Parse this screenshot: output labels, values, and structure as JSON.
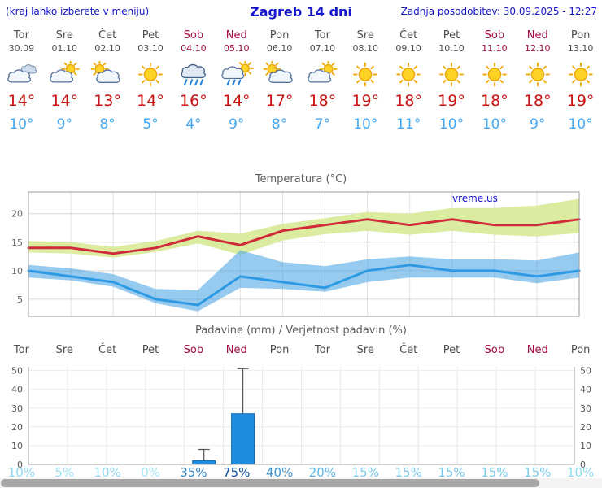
{
  "header": {
    "hint": "(kraj lahko izberete v meniju)",
    "title": "Zagreb 14 dni",
    "updated": "Zadnja posodobitev: 30.09.2025 - 12:27"
  },
  "days": [
    {
      "name": "Tor",
      "date": "30.09",
      "weekend": false,
      "icon": "cloudy",
      "tmax": "14°",
      "tmin": "10°",
      "precip_prob": "10%",
      "prob_color": "#8ed9f0"
    },
    {
      "name": "Sre",
      "date": "01.10",
      "weekend": false,
      "icon": "sun-cloud",
      "tmax": "14°",
      "tmin": "9°",
      "precip_prob": "5%",
      "prob_color": "#9ce0f4"
    },
    {
      "name": "Čet",
      "date": "02.10",
      "weekend": false,
      "icon": "cloud-sun",
      "tmax": "13°",
      "tmin": "8°",
      "precip_prob": "10%",
      "prob_color": "#8ed9f0"
    },
    {
      "name": "Pet",
      "date": "03.10",
      "weekend": false,
      "icon": "sun",
      "tmax": "14°",
      "tmin": "5°",
      "precip_prob": "0%",
      "prob_color": "#a6e4f6"
    },
    {
      "name": "Sob",
      "date": "04.10",
      "weekend": true,
      "icon": "rain",
      "tmax": "16°",
      "tmin": "4°",
      "precip_prob": "35%",
      "prob_color": "#2f86c7"
    },
    {
      "name": "Ned",
      "date": "05.10",
      "weekend": true,
      "icon": "sun-rain",
      "tmax": "14°",
      "tmin": "9°",
      "precip_prob": "75%",
      "prob_color": "#0c4da2"
    },
    {
      "name": "Pon",
      "date": "06.10",
      "weekend": false,
      "icon": "cloud-sun",
      "tmax": "17°",
      "tmin": "8°",
      "precip_prob": "40%",
      "prob_color": "#3d95d1"
    },
    {
      "name": "Tor",
      "date": "07.10",
      "weekend": false,
      "icon": "sun-cloud",
      "tmax": "18°",
      "tmin": "7°",
      "precip_prob": "20%",
      "prob_color": "#5fb6e2"
    },
    {
      "name": "Sre",
      "date": "08.10",
      "weekend": false,
      "icon": "sun",
      "tmax": "19°",
      "tmin": "10°",
      "precip_prob": "15%",
      "prob_color": "#77c9ea"
    },
    {
      "name": "Čet",
      "date": "09.10",
      "weekend": false,
      "icon": "sun",
      "tmax": "18°",
      "tmin": "11°",
      "precip_prob": "15%",
      "prob_color": "#77c9ea"
    },
    {
      "name": "Pet",
      "date": "10.10",
      "weekend": false,
      "icon": "sun",
      "tmax": "19°",
      "tmin": "10°",
      "precip_prob": "15%",
      "prob_color": "#77c9ea"
    },
    {
      "name": "Sob",
      "date": "11.10",
      "weekend": true,
      "icon": "sun",
      "tmax": "18°",
      "tmin": "10°",
      "precip_prob": "15%",
      "prob_color": "#77c9ea"
    },
    {
      "name": "Ned",
      "date": "12.10",
      "weekend": true,
      "icon": "sun",
      "tmax": "18°",
      "tmin": "9°",
      "precip_prob": "15%",
      "prob_color": "#77c9ea"
    },
    {
      "name": "Pon",
      "date": "13.10",
      "weekend": false,
      "icon": "sun",
      "tmax": "19°",
      "tmin": "10°",
      "precip_prob": "10%",
      "prob_color": "#8ed9f0"
    }
  ],
  "chart_data": [
    {
      "type": "line",
      "title": "Temperatura (°C)",
      "watermark": "vreme.us",
      "x_labels": [
        "Tor 30.09",
        "Sre 01.10",
        "Čet 02.10",
        "Pet 03.10",
        "Sob 04.10",
        "Ned 05.10",
        "Pon 06.10",
        "Tor 07.10",
        "Sre 08.10",
        "Čet 09.10",
        "Pet 10.10",
        "Sob 11.10",
        "Ned 12.10",
        "Pon 13.10"
      ],
      "ylim": [
        2,
        23.8
      ],
      "yticks": [
        5,
        10,
        15,
        20
      ],
      "series": [
        {
          "name": "max_temp",
          "color": "#cf2b3a",
          "width": 3,
          "values": [
            14,
            14,
            13,
            14,
            16,
            14.5,
            17,
            18,
            19,
            18,
            19,
            18,
            18,
            19
          ]
        },
        {
          "name": "min_temp",
          "color": "#2d9ae3",
          "width": 3,
          "values": [
            10,
            9,
            8,
            5,
            4,
            9,
            8,
            7,
            10,
            11,
            10,
            10,
            9,
            10
          ]
        }
      ],
      "bands": [
        {
          "name": "max_temp_range",
          "color": "#d9eb9b",
          "opacity": 0.95,
          "upper": [
            15.2,
            15,
            14.2,
            15.2,
            17,
            16.5,
            18.2,
            19.2,
            20.3,
            20,
            21,
            21,
            21.4,
            22.6
          ],
          "lower": [
            13.2,
            13,
            12.3,
            13.3,
            14.8,
            12.8,
            15.3,
            16.4,
            17,
            16.3,
            17,
            16.3,
            16,
            16.6
          ]
        },
        {
          "name": "min_temp_range",
          "color": "#3f9fe0",
          "opacity": 0.55,
          "upper": [
            11,
            10.4,
            9.4,
            6.8,
            6.6,
            13.6,
            11.5,
            10.8,
            12,
            12.5,
            12,
            12,
            11.8,
            13.2
          ],
          "lower": [
            8.8,
            8.3,
            7.2,
            4.3,
            2.9,
            7,
            6.8,
            6.3,
            8,
            8.8,
            8.8,
            8.8,
            7.8,
            8.8
          ]
        }
      ]
    },
    {
      "type": "bar",
      "title": "Padavine (mm) / Verjetnost padavin (%)",
      "ylim": [
        0,
        52
      ],
      "yticks": [
        0,
        10,
        20,
        30,
        40,
        50
      ],
      "categories": [
        "Tor",
        "Sre",
        "Čet",
        "Pet",
        "Sob",
        "Ned",
        "Pon",
        "Tor",
        "Sre",
        "Čet",
        "Pet",
        "Sob",
        "Ned",
        "Pon"
      ],
      "values": [
        0,
        0,
        0,
        0,
        2,
        27,
        0,
        0,
        0,
        0,
        0,
        0,
        0,
        0
      ],
      "whisker_low": [
        0,
        0,
        0,
        0,
        0,
        13,
        0,
        0,
        0,
        0,
        0,
        0,
        0,
        0
      ],
      "whisker_high": [
        0,
        0,
        0,
        0,
        8,
        51,
        0,
        0,
        0,
        0,
        0,
        0,
        0,
        0
      ],
      "probabilities": [
        "10%",
        "5%",
        "10%",
        "0%",
        "35%",
        "75%",
        "40%",
        "20%",
        "15%",
        "15%",
        "15%",
        "15%",
        "15%",
        "10%"
      ],
      "bar_color": "#1f8ce0",
      "bar_border": "#0c6bb8"
    }
  ]
}
